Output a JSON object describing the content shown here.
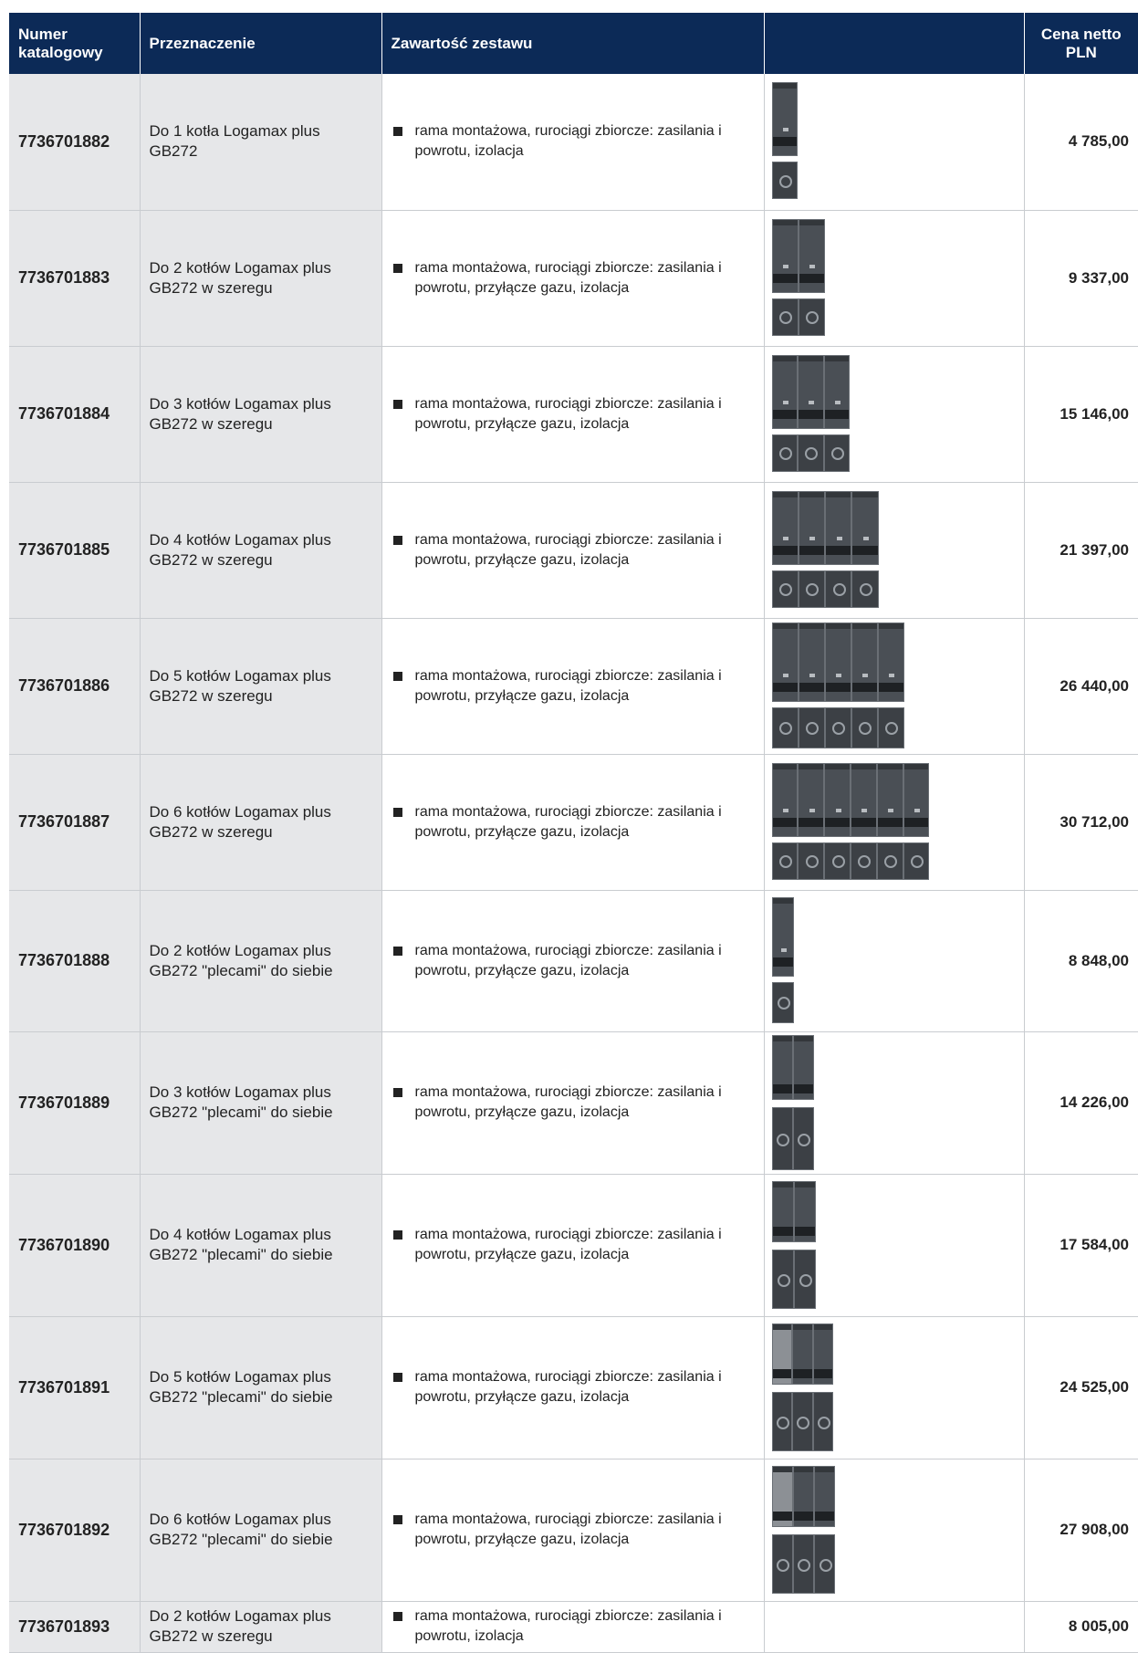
{
  "header": {
    "col_catalog": "Numer katalogowy",
    "col_purpose": "Przeznaczenie",
    "col_contents": "Zawartość zestawu",
    "col_image": "",
    "col_price": "Cena netto PLN"
  },
  "rows": [
    {
      "catalog": "7736701882",
      "purpose": "Do 1 kotła Logamax plus GB272",
      "contents": "rama montażowa, rurociągi zbiorcze: zasilania i powrotu, izolacja",
      "price": "4 785,00"
    },
    {
      "catalog": "7736701883",
      "purpose": "Do 2 kotłów Logamax plus GB272 w szeregu",
      "contents": "rama montażowa, rurociągi zbiorcze: zasilania i powrotu, przyłącze gazu, izolacja",
      "price": "9 337,00"
    },
    {
      "catalog": "7736701884",
      "purpose": "Do 3 kotłów Logamax plus GB272 w szeregu",
      "contents": "rama montażowa, rurociągi zbiorcze: zasilania i powrotu, przyłącze gazu, izolacja",
      "price": "15 146,00"
    },
    {
      "catalog": "7736701885",
      "purpose": "Do 4 kotłów Logamax plus GB272 w szeregu",
      "contents": "rama montażowa, rurociągi zbiorcze: zasilania i powrotu, przyłącze gazu, izolacja",
      "price": "21 397,00"
    },
    {
      "catalog": "7736701886",
      "purpose": "Do 5 kotłów Logamax plus GB272 w szeregu",
      "contents": "rama montażowa, rurociągi zbiorcze: zasilania i powrotu, przyłącze gazu, izolacja",
      "price": "26 440,00"
    },
    {
      "catalog": "7736701887",
      "purpose": "Do 6 kotłów Logamax plus GB272 w szeregu",
      "contents": "rama montażowa, rurociągi zbiorcze: zasilania i powrotu, przyłącze gazu, izolacja",
      "price": "30 712,00"
    },
    {
      "catalog": "7736701888",
      "purpose": "Do 2 kotłów Logamax plus GB272 \"plecami\" do siebie",
      "contents": "rama montażowa, rurociągi zbiorcze: zasilania i powrotu, przyłącze gazu, izolacja",
      "price": "8 848,00"
    },
    {
      "catalog": "7736701889",
      "purpose": "Do 3 kotłów Logamax plus GB272 \"plecami\" do siebie",
      "contents": "rama montażowa, rurociągi zbiorcze: zasilania i powrotu, przyłącze gazu, izolacja",
      "price": "14 226,00"
    },
    {
      "catalog": "7736701890",
      "purpose": "Do 4 kotłów Logamax plus GB272 \"plecami\" do siebie",
      "contents": "rama montażowa, rurociągi zbiorcze: zasilania i powrotu, przyłącze gazu, izolacja",
      "price": "17 584,00"
    },
    {
      "catalog": "7736701891",
      "purpose": "Do 5 kotłów Logamax plus GB272 \"plecami\" do siebie",
      "contents": "rama montażowa, rurociągi zbiorcze: zasilania i powrotu, przyłącze gazu, izolacja",
      "price": "24 525,00"
    },
    {
      "catalog": "7736701892",
      "purpose": "Do 6 kotłów Logamax plus GB272 \"plecami\" do siebie",
      "contents": "rama montażowa, rurociągi zbiorcze: zasilania i powrotu, przyłącze gazu, izolacja",
      "price": "27 908,00"
    },
    {
      "catalog": "7736701893",
      "purpose": "Do 2 kotłów Logamax plus GB272 w szeregu",
      "contents": "rama montażowa, rurociągi zbiorcze: zasilania i powrotu, izolacja",
      "price": "8 005,00"
    }
  ]
}
